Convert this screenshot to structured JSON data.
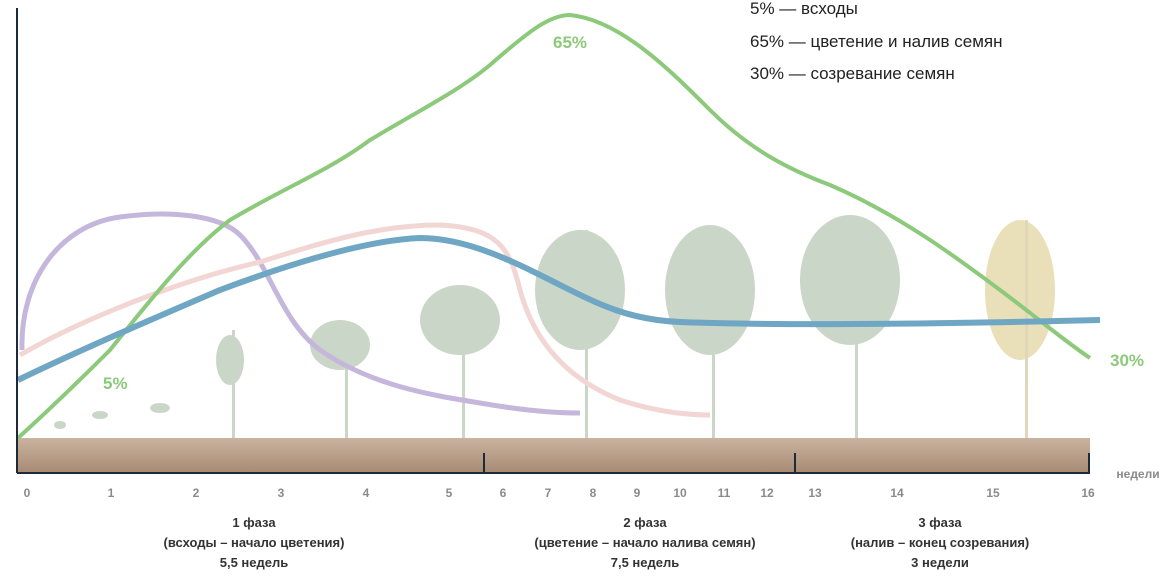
{
  "legend": [
    "5% — всходы",
    "65% — цветение и налив семян",
    "30% — созревание семян"
  ],
  "curve_labels": [
    "65%",
    "5%",
    "30%"
  ],
  "axis_label": "недели",
  "weeks": [
    0,
    1,
    2,
    3,
    4,
    5,
    6,
    7,
    8,
    9,
    10,
    11,
    12,
    13,
    14,
    15,
    16
  ],
  "phases": [
    {
      "title": "1 фаза",
      "range": "(всходы – начало цветения)",
      "duration": "5,5 недель"
    },
    {
      "title": "2 фаза",
      "range": "(цветение – начало налива семян)",
      "duration": "7,5 недель"
    },
    {
      "title": "3 фаза",
      "range": "(налив – конец созревания)",
      "duration": "3 недели"
    }
  ]
}
